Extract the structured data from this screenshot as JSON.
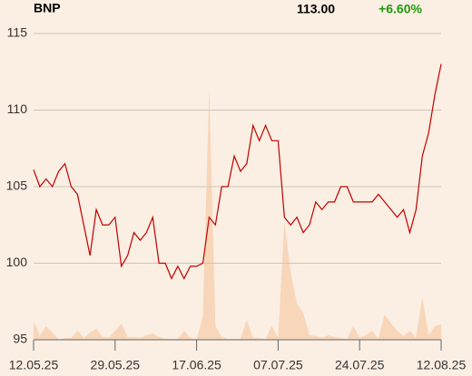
{
  "chart_data": {
    "type": "line",
    "title": "BNP",
    "last_label": "113.00",
    "change_label": "+6.60%",
    "change_color": "#1f9a0c",
    "categories": [
      "12.05.25",
      null,
      null,
      null,
      null,
      null,
      null,
      null,
      null,
      null,
      null,
      null,
      null,
      "29.05.25",
      null,
      null,
      null,
      null,
      null,
      null,
      null,
      null,
      null,
      null,
      null,
      null,
      "17.06.25",
      null,
      null,
      null,
      null,
      null,
      null,
      null,
      null,
      null,
      null,
      null,
      null,
      "07.07.25",
      null,
      null,
      null,
      null,
      null,
      null,
      null,
      null,
      null,
      null,
      null,
      null,
      "24.07.25",
      null,
      null,
      null,
      null,
      null,
      null,
      null,
      null,
      null,
      null,
      null,
      null,
      "12.08.25"
    ],
    "series": [
      {
        "color": "#c00000",
        "values": [
          106.1,
          105.0,
          105.5,
          105.0,
          106.0,
          106.5,
          105.0,
          104.5,
          102.5,
          100.5,
          103.5,
          102.5,
          102.5,
          103.0,
          99.8,
          100.5,
          102.0,
          101.5,
          102.0,
          103.0,
          100.0,
          100.0,
          99.0,
          99.8,
          99.0,
          99.8,
          99.8,
          100.0,
          103.0,
          102.5,
          105.0,
          105.0,
          107.0,
          106.0,
          106.5,
          109.0,
          108.0,
          109.0,
          108.0,
          108.0,
          103.0,
          102.5,
          103.0,
          102.0,
          102.5,
          104.0,
          103.5,
          104.0,
          104.0,
          105.0,
          105.0,
          104.0,
          104.0,
          104.0,
          104.0,
          104.5,
          104.0,
          103.5,
          103.0,
          103.5,
          102.0,
          103.5,
          107.0,
          108.5,
          111.0,
          113.0
        ]
      },
      {
        "color": "#f8d6ba",
        "axis": "y2",
        "values": [
          20,
          5,
          15,
          8,
          0,
          2,
          2,
          10,
          2,
          8,
          12,
          3,
          2,
          10,
          18,
          3,
          3,
          2,
          5,
          7,
          3,
          1,
          1,
          1,
          10,
          2,
          1,
          25,
          278,
          15,
          3,
          1,
          1,
          1,
          22,
          2,
          2,
          1,
          15,
          2,
          130,
          75,
          40,
          30,
          5,
          4,
          2,
          5,
          3,
          2,
          1,
          15,
          2,
          5,
          10,
          1,
          28,
          18,
          10,
          4,
          10,
          2,
          47,
          5,
          15,
          17
        ]
      }
    ],
    "ylim": [
      95,
      115
    ],
    "yticks": [
      95,
      100,
      105,
      110,
      115
    ],
    "y2lim": [
      0,
      338
    ],
    "grid": true
  }
}
